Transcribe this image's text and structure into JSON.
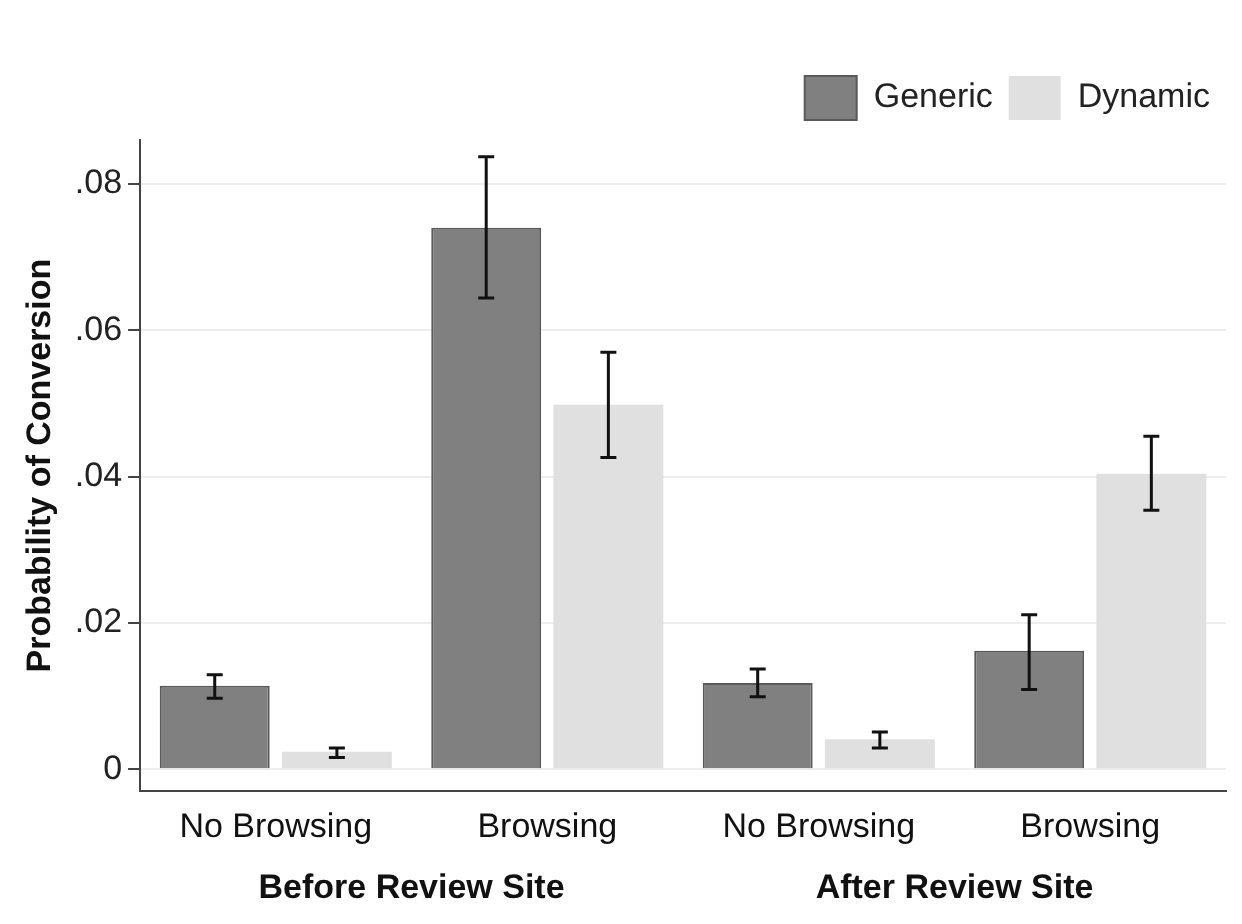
{
  "chart_data": {
    "type": "bar",
    "ylabel": "Probability of Conversion",
    "categories": [
      "No Browsing",
      "Browsing",
      "No Browsing",
      "Browsing"
    ],
    "series": [
      {
        "name": "Generic",
        "color": "#808080",
        "values": [
          0.0114,
          0.074,
          0.0118,
          0.0162
        ],
        "errors": [
          [
            0.0097,
            0.0129
          ],
          [
            0.0644,
            0.0837
          ],
          [
            0.0099,
            0.0137
          ],
          [
            0.0109,
            0.0211
          ]
        ]
      },
      {
        "name": "Dynamic",
        "color": "#e0e0e0",
        "values": [
          0.0024,
          0.0498,
          0.0041,
          0.0404
        ],
        "errors": [
          [
            0.0016,
            0.0029
          ],
          [
            0.0426,
            0.057
          ],
          [
            0.0029,
            0.0051
          ],
          [
            0.0354,
            0.0455
          ]
        ]
      }
    ],
    "annotations": [
      "Before Review Site",
      "After Review Site"
    ],
    "ylim": [
      -0.003,
      0.086
    ],
    "yticks": [
      {
        "value": 0,
        "label": "0"
      },
      {
        "value": 0.02,
        "label": ".02"
      },
      {
        "value": 0.04,
        "label": ".04"
      },
      {
        "value": 0.06,
        "label": ".06"
      },
      {
        "value": 0.08,
        "label": ".08"
      }
    ],
    "grid": "y",
    "legend": "top right"
  }
}
